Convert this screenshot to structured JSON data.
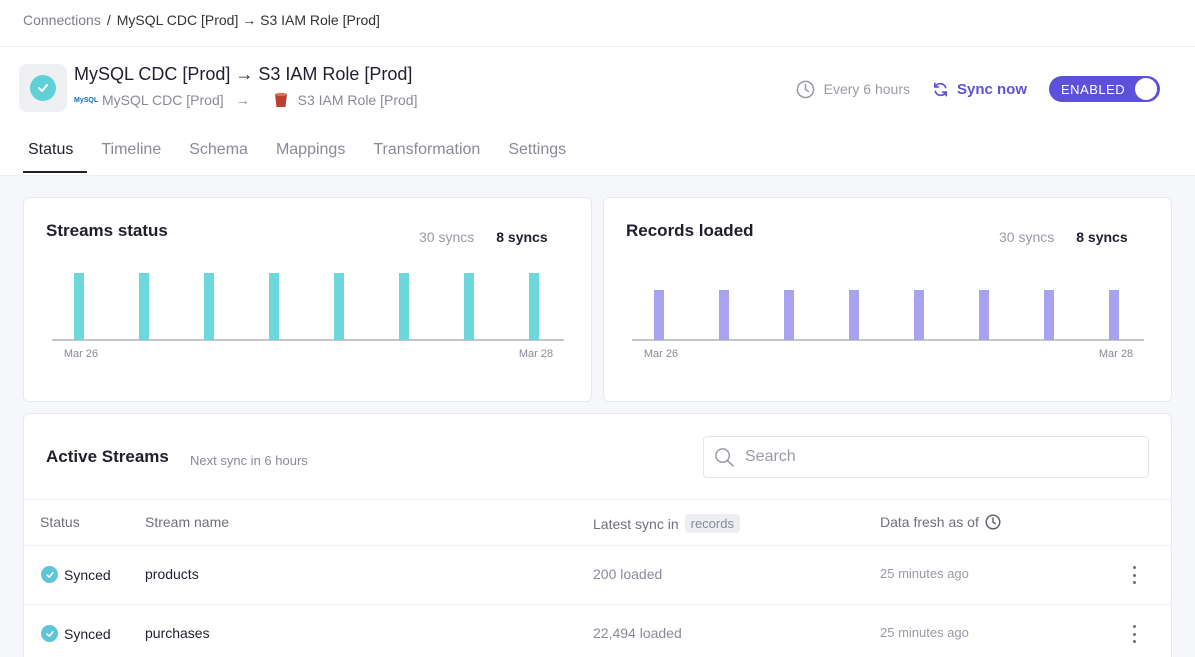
{
  "breadcrumb": {
    "root": "Connections",
    "separator": "/",
    "current": "MySQL CDC [Prod] → S3 IAM Role [Prod]"
  },
  "connection": {
    "title": "MySQL CDC [Prod] → S3 IAM Role [Prod]",
    "source_logo": "MySQL",
    "source": "MySQL CDC [Prod]",
    "arrow": "→",
    "destination": "S3 IAM Role [Prod]"
  },
  "header": {
    "schedule": "Every 6 hours",
    "sync_now": "Sync now",
    "toggle_label": "ENABLED",
    "accent": "#5b52d9"
  },
  "tabs": [
    {
      "label": "Status",
      "active": true
    },
    {
      "label": "Timeline",
      "active": false
    },
    {
      "label": "Schema",
      "active": false
    },
    {
      "label": "Mappings",
      "active": false
    },
    {
      "label": "Transformation",
      "active": false
    },
    {
      "label": "Settings",
      "active": false
    }
  ],
  "streams_status": {
    "title": "Streams status",
    "option_a": "30 syncs",
    "option_b": "8 syncs",
    "color": "#6dd8dc"
  },
  "records_loaded": {
    "title": "Records loaded",
    "option_a": "30 syncs",
    "option_b": "8 syncs",
    "color": "#a7a3f0"
  },
  "chart_data": [
    {
      "type": "bar",
      "title": "Streams status",
      "x_start_label": "Mar 26",
      "x_end_label": "Mar 28",
      "values": [
        1,
        1,
        1,
        1,
        1,
        1,
        1,
        1
      ],
      "grid": false
    },
    {
      "type": "bar",
      "title": "Records loaded",
      "x_start_label": "Mar 26",
      "x_end_label": "Mar 28",
      "values": [
        1,
        1,
        1,
        1,
        1,
        1,
        1,
        1
      ],
      "grid": false
    }
  ],
  "active_streams": {
    "title": "Active Streams",
    "next_sync": "Next sync in 6 hours",
    "search_placeholder": "Search",
    "columns": {
      "status": "Status",
      "name": "Stream name",
      "latest_sync": "Latest sync in",
      "latest_sync_unit": "records",
      "fresh": "Data fresh as of"
    },
    "rows": [
      {
        "status": "Synced",
        "name": "products",
        "loaded": "200 loaded",
        "fresh": "25 minutes ago"
      },
      {
        "status": "Synced",
        "name": "purchases",
        "loaded": "22,494 loaded",
        "fresh": "25 minutes ago"
      }
    ]
  }
}
